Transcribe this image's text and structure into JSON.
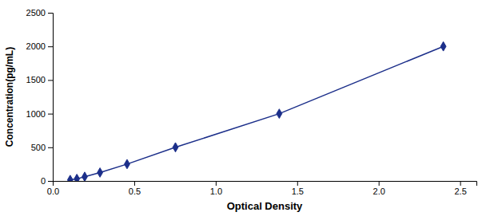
{
  "chart_data": {
    "type": "line",
    "x": [
      0.107,
      0.148,
      0.196,
      0.29,
      0.456,
      0.753,
      1.39,
      2.397
    ],
    "values": [
      15.6,
      31.25,
      62.5,
      125,
      250,
      500,
      1000,
      2000
    ],
    "color": "#1C2F8A",
    "marker": "diamond",
    "xlabel": "Optical Density",
    "ylabel": "Concentration(pg/mL)",
    "xlim": [
      0,
      2.6
    ],
    "ylim": [
      0,
      2500
    ],
    "xticks": [
      {
        "value": 0,
        "label": "0.0"
      },
      0.5,
      {
        "value": 1,
        "label": "1.0"
      },
      1.5,
      {
        "value": 2,
        "label": "2.0"
      },
      2.5
    ],
    "yticks": [
      0,
      500,
      1000,
      1500,
      2000,
      2500
    ]
  }
}
